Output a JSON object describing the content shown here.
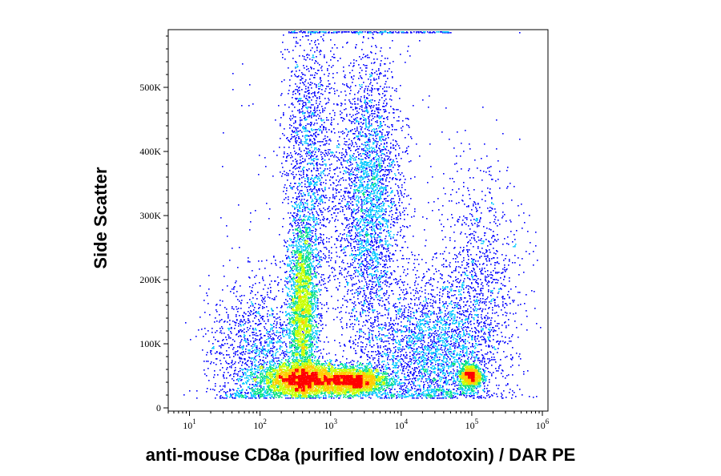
{
  "chart_data": {
    "type": "scatter",
    "title": "",
    "xlabel": "anti-mouse CD8a (purified low endotoxin) / DAR PE",
    "ylabel": "Side Scatter",
    "x_scale": "log",
    "xlim": [
      5,
      1200000
    ],
    "ylim": [
      -5000,
      590000
    ],
    "x_ticks": [
      {
        "value": 10,
        "base": "10",
        "exp": "1"
      },
      {
        "value": 100,
        "base": "10",
        "exp": "2"
      },
      {
        "value": 1000,
        "base": "10",
        "exp": "3"
      },
      {
        "value": 10000,
        "base": "10",
        "exp": "4"
      },
      {
        "value": 100000,
        "base": "10",
        "exp": "5"
      },
      {
        "value": 1000000,
        "base": "10",
        "exp": "6"
      }
    ],
    "y_ticks": [
      {
        "value": 0,
        "label": "0"
      },
      {
        "value": 100000,
        "label": "100K"
      },
      {
        "value": 200000,
        "label": "200K"
      },
      {
        "value": 300000,
        "label": "300K"
      },
      {
        "value": 400000,
        "label": "400K"
      },
      {
        "value": 500000,
        "label": "500K"
      }
    ],
    "grid": false,
    "legend": "none",
    "density_colormap": [
      "#0000ff",
      "#00c8ff",
      "#00e080",
      "#c8ff00",
      "#ffcc00",
      "#ff0000"
    ],
    "populations": [
      {
        "x_log10_center": 2.6,
        "x_log10_spread": 0.28,
        "y_center": 45000,
        "y_spread": 12000,
        "weight": 0.24
      },
      {
        "x_log10_center": 3.3,
        "x_log10_spread": 0.25,
        "y_center": 42000,
        "y_spread": 10000,
        "weight": 0.17
      },
      {
        "x_log10_center": 2.6,
        "x_log10_spread": 0.1,
        "y_center": 150000,
        "y_spread": 70000,
        "weight": 0.15
      },
      {
        "x_log10_center": 3.55,
        "x_log10_spread": 0.22,
        "y_center": 330000,
        "y_spread": 110000,
        "weight": 0.11
      },
      {
        "x_log10_center": 2.7,
        "x_log10_spread": 0.18,
        "y_center": 380000,
        "y_spread": 120000,
        "weight": 0.06
      },
      {
        "x_log10_center": 4.4,
        "x_log10_spread": 0.45,
        "y_center": 90000,
        "y_spread": 55000,
        "weight": 0.1
      },
      {
        "x_log10_center": 4.98,
        "x_log10_spread": 0.08,
        "y_center": 50000,
        "y_spread": 9000,
        "weight": 0.05
      },
      {
        "x_log10_center": 5.1,
        "x_log10_spread": 0.3,
        "y_center": 200000,
        "y_spread": 90000,
        "weight": 0.04
      },
      {
        "x_log10_center": 2.0,
        "x_log10_spread": 0.35,
        "y_center": 80000,
        "y_spread": 60000,
        "weight": 0.06
      },
      {
        "x_log10_center": 3.2,
        "x_log10_spread": 0.7,
        "y_center": 250000,
        "y_spread": 170000,
        "weight": 0.02
      }
    ],
    "saturation_band": {
      "x_log10_range": [
        2.4,
        4.7
      ],
      "y": 587000
    }
  }
}
